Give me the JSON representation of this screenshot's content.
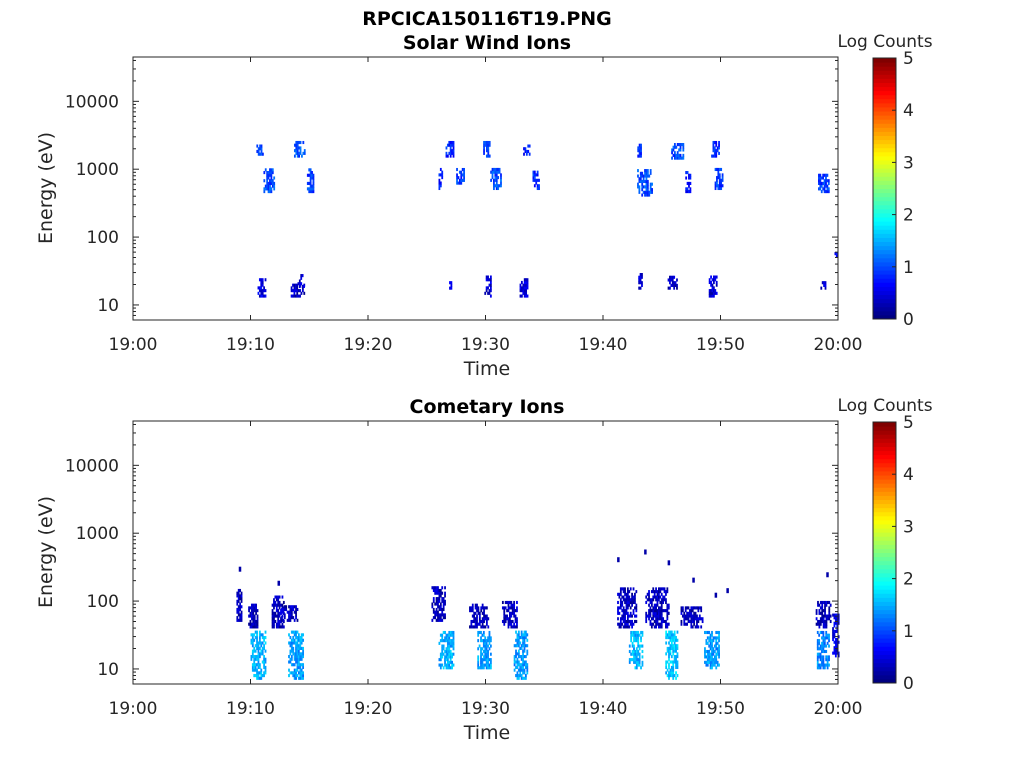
{
  "figure_title": "RPCICA150116T19.PNG",
  "chart_data": [
    {
      "type": "heatmap",
      "title": "Solar Wind Ions",
      "xlabel": "Time",
      "ylabel": "Energy (eV)",
      "y_scale": "log",
      "ylim": [
        6,
        45000
      ],
      "xlim": [
        "19:00",
        "20:00"
      ],
      "x_ticks": [
        "19:00",
        "19:10",
        "19:20",
        "19:30",
        "19:40",
        "19:50",
        "20:00"
      ],
      "y_ticks": [
        "10",
        "100",
        "1000",
        "10000"
      ],
      "colorbar": {
        "label": "Log Counts",
        "min": 0,
        "max": 5,
        "ticks": [
          "0",
          "1",
          "2",
          "3",
          "4",
          "5"
        ]
      },
      "patches": [
        {
          "t": [
            10.5,
            11.0
          ],
          "e": [
            1600,
            2400
          ],
          "v": 0.9
        },
        {
          "t": [
            11.1,
            12.0
          ],
          "e": [
            450,
            1000
          ],
          "v": 1.0
        },
        {
          "t": [
            13.7,
            14.6
          ],
          "e": [
            1500,
            2500
          ],
          "v": 1.0
        },
        {
          "t": [
            14.8,
            15.3
          ],
          "e": [
            450,
            1000
          ],
          "v": 0.9
        },
        {
          "t": [
            26.6,
            27.3
          ],
          "e": [
            1500,
            2600
          ],
          "v": 0.8
        },
        {
          "t": [
            26.0,
            26.3
          ],
          "e": [
            500,
            1000
          ],
          "v": 0.7
        },
        {
          "t": [
            27.5,
            28.2
          ],
          "e": [
            600,
            1000
          ],
          "v": 0.9
        },
        {
          "t": [
            29.8,
            30.5
          ],
          "e": [
            1500,
            2500
          ],
          "v": 0.9
        },
        {
          "t": [
            30.4,
            31.3
          ],
          "e": [
            500,
            1000
          ],
          "v": 1.0
        },
        {
          "t": [
            33.2,
            33.7
          ],
          "e": [
            1600,
            2300
          ],
          "v": 0.7
        },
        {
          "t": [
            34.0,
            34.5
          ],
          "e": [
            500,
            950
          ],
          "v": 0.8
        },
        {
          "t": [
            42.8,
            43.2
          ],
          "e": [
            1500,
            2300
          ],
          "v": 0.8
        },
        {
          "t": [
            42.9,
            44.1
          ],
          "e": [
            400,
            1000
          ],
          "v": 1.0
        },
        {
          "t": [
            45.8,
            46.8
          ],
          "e": [
            1400,
            2300
          ],
          "v": 1.0
        },
        {
          "t": [
            47.0,
            47.4
          ],
          "e": [
            450,
            900
          ],
          "v": 0.7
        },
        {
          "t": [
            49.2,
            49.8
          ],
          "e": [
            1500,
            2400
          ],
          "v": 0.8
        },
        {
          "t": [
            49.5,
            50.1
          ],
          "e": [
            500,
            1000
          ],
          "v": 0.9
        },
        {
          "t": [
            58.3,
            59.2
          ],
          "e": [
            450,
            800
          ],
          "v": 0.9
        },
        {
          "t": [
            10.6,
            11.2
          ],
          "e": [
            13,
            23
          ],
          "v": 0.5
        },
        {
          "t": [
            13.3,
            14.5
          ],
          "e": [
            13,
            20
          ],
          "v": 0.3
        },
        {
          "t": [
            14.0,
            14.5
          ],
          "e": [
            18,
            28
          ],
          "v": 0.4
        },
        {
          "t": [
            26.9,
            27.1
          ],
          "e": [
            17,
            22
          ],
          "v": 0.4
        },
        {
          "t": [
            29.9,
            30.5
          ],
          "e": [
            13,
            27
          ],
          "v": 0.4
        },
        {
          "t": [
            32.9,
            33.6
          ],
          "e": [
            13,
            23
          ],
          "v": 0.4
        },
        {
          "t": [
            43.0,
            43.3
          ],
          "e": [
            17,
            27
          ],
          "v": 0.4
        },
        {
          "t": [
            45.5,
            46.3
          ],
          "e": [
            17,
            26
          ],
          "v": 0.3
        },
        {
          "t": [
            49.0,
            49.6
          ],
          "e": [
            13,
            26
          ],
          "v": 0.4
        },
        {
          "t": [
            58.5,
            58.9
          ],
          "e": [
            17,
            22
          ],
          "v": 0.4
        },
        {
          "t": [
            59.7,
            59.9
          ],
          "e": [
            50,
            60
          ],
          "v": 0.6
        }
      ]
    },
    {
      "type": "heatmap",
      "title": "Cometary Ions",
      "xlabel": "Time",
      "ylabel": "Energy (eV)",
      "y_scale": "log",
      "ylim": [
        6,
        45000
      ],
      "xlim": [
        "19:00",
        "20:00"
      ],
      "x_ticks": [
        "19:00",
        "19:10",
        "19:20",
        "19:30",
        "19:40",
        "19:50",
        "20:00"
      ],
      "y_ticks": [
        "10",
        "100",
        "1000",
        "10000"
      ],
      "colorbar": {
        "label": "Log Counts",
        "min": 0,
        "max": 5,
        "ticks": [
          "0",
          "1",
          "2",
          "3",
          "4",
          "5"
        ]
      },
      "patches": [
        {
          "t": [
            10.0,
            11.2
          ],
          "e": [
            7,
            35
          ],
          "v": 1.5
        },
        {
          "t": [
            13.2,
            14.5
          ],
          "e": [
            7,
            35
          ],
          "v": 1.4
        },
        {
          "t": [
            26.0,
            27.3
          ],
          "e": [
            10,
            35
          ],
          "v": 1.5
        },
        {
          "t": [
            29.3,
            30.5
          ],
          "e": [
            10,
            35
          ],
          "v": 1.4
        },
        {
          "t": [
            32.4,
            33.5
          ],
          "e": [
            7,
            35
          ],
          "v": 1.4
        },
        {
          "t": [
            42.2,
            43.3
          ],
          "e": [
            10,
            35
          ],
          "v": 1.5
        },
        {
          "t": [
            45.3,
            46.3
          ],
          "e": [
            7,
            35
          ],
          "v": 1.6
        },
        {
          "t": [
            48.6,
            49.9
          ],
          "e": [
            10,
            35
          ],
          "v": 1.4
        },
        {
          "t": [
            58.2,
            59.2
          ],
          "e": [
            10,
            35
          ],
          "v": 1.3
        },
        {
          "t": [
            8.8,
            9.2
          ],
          "e": [
            50,
            150
          ],
          "v": 0.3
        },
        {
          "t": [
            9.8,
            10.6
          ],
          "e": [
            40,
            90
          ],
          "v": 0.3
        },
        {
          "t": [
            11.8,
            12.8
          ],
          "e": [
            40,
            120
          ],
          "v": 0.3
        },
        {
          "t": [
            12.6,
            14.0
          ],
          "e": [
            50,
            80
          ],
          "v": 0.3
        },
        {
          "t": [
            25.4,
            26.6
          ],
          "e": [
            50,
            160
          ],
          "v": 0.3
        },
        {
          "t": [
            28.6,
            30.2
          ],
          "e": [
            40,
            90
          ],
          "v": 0.3
        },
        {
          "t": [
            31.4,
            32.6
          ],
          "e": [
            40,
            100
          ],
          "v": 0.3
        },
        {
          "t": [
            41.2,
            42.8
          ],
          "e": [
            40,
            150
          ],
          "v": 0.3
        },
        {
          "t": [
            43.6,
            45.6
          ],
          "e": [
            40,
            150
          ],
          "v": 0.3
        },
        {
          "t": [
            46.6,
            48.4
          ],
          "e": [
            40,
            80
          ],
          "v": 0.3
        },
        {
          "t": [
            58.1,
            59.3
          ],
          "e": [
            40,
            100
          ],
          "v": 0.3
        },
        {
          "t": [
            59.5,
            60.0
          ],
          "e": [
            15,
            60
          ],
          "v": 0.5
        }
      ],
      "dots": [
        {
          "t": 43.5,
          "e": 520
        },
        {
          "t": 41.2,
          "e": 400
        },
        {
          "t": 45.5,
          "e": 360
        },
        {
          "t": 59.0,
          "e": 240
        },
        {
          "t": 9.0,
          "e": 290
        },
        {
          "t": 12.3,
          "e": 180
        },
        {
          "t": 47.6,
          "e": 200
        },
        {
          "t": 49.5,
          "e": 120
        },
        {
          "t": 50.5,
          "e": 140
        }
      ]
    }
  ]
}
